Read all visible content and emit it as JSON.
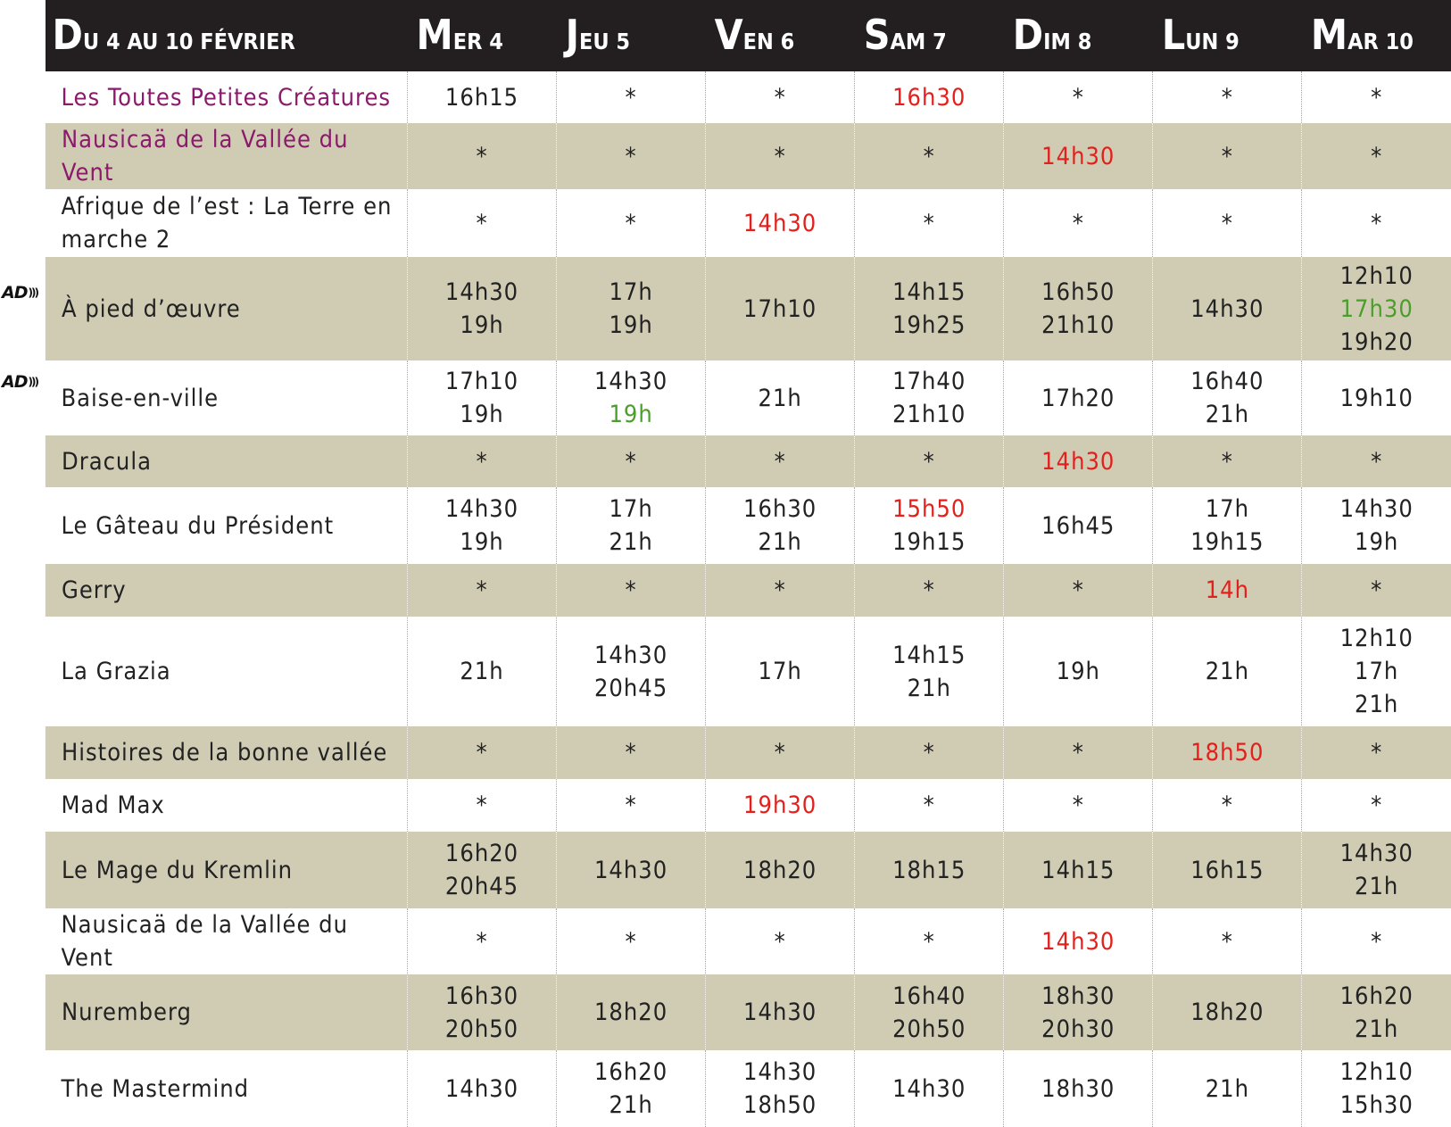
{
  "header": {
    "title": "DU 4 AU 10 FÉVRIER",
    "days": [
      "MER 4",
      "JEU 5",
      "VEN 6",
      "SAM 7",
      "DIM 8",
      "LUN 9",
      "MAR 10"
    ]
  },
  "rows": [
    {
      "title": "Les Toutes Petites Créatures",
      "title_color": "#8b1a6b",
      "cells": [
        [
          "16h15"
        ],
        [
          "*"
        ],
        [
          "*"
        ],
        [
          {
            "text": "16h30",
            "color": "#e3201b"
          }
        ],
        [
          "*"
        ],
        [
          "*"
        ],
        [
          "*"
        ]
      ]
    },
    {
      "title": "Nausicaä de la Vallée du Vent",
      "title_color": "#8b1a6b",
      "cells": [
        [
          "*"
        ],
        [
          "*"
        ],
        [
          "*"
        ],
        [
          "*"
        ],
        [
          {
            "text": "14h30",
            "color": "#e3201b"
          }
        ],
        [
          "*"
        ],
        [
          "*"
        ]
      ]
    },
    {
      "title": "Afrique de l’est : La Terre en marche 2",
      "cells": [
        [
          "*"
        ],
        [
          "*"
        ],
        [
          {
            "text": "14h30",
            "color": "#e3201b"
          }
        ],
        [
          "*"
        ],
        [
          "*"
        ],
        [
          "*"
        ],
        [
          "*"
        ]
      ]
    },
    {
      "title": "À pied d’œuvre",
      "badge": "AD",
      "cells": [
        [
          "14h30",
          "19h"
        ],
        [
          "17h",
          "19h"
        ],
        [
          "17h10"
        ],
        [
          "14h15",
          "19h25"
        ],
        [
          "16h50",
          "21h10"
        ],
        [
          "14h30"
        ],
        [
          "12h10",
          {
            "text": "17h30",
            "color": "#4a9e2a"
          },
          "19h20"
        ]
      ]
    },
    {
      "title": "Baise-en-ville",
      "badge": "AD",
      "cells": [
        [
          "17h10",
          "19h"
        ],
        [
          "14h30",
          {
            "text": "19h",
            "color": "#4a9e2a"
          }
        ],
        [
          "21h"
        ],
        [
          "17h40",
          "21h10"
        ],
        [
          "17h20"
        ],
        [
          "16h40",
          "21h"
        ],
        [
          "19h10"
        ]
      ]
    },
    {
      "title": "Dracula",
      "cells": [
        [
          "*"
        ],
        [
          "*"
        ],
        [
          "*"
        ],
        [
          "*"
        ],
        [
          {
            "text": "14h30",
            "color": "#e3201b"
          }
        ],
        [
          "*"
        ],
        [
          "*"
        ]
      ]
    },
    {
      "title": "Le Gâteau du Président",
      "cells": [
        [
          "14h30",
          "19h"
        ],
        [
          "17h",
          "21h"
        ],
        [
          "16h30",
          "21h"
        ],
        [
          {
            "text": "15h50",
            "color": "#e3201b"
          },
          "19h15"
        ],
        [
          "16h45"
        ],
        [
          "17h",
          "19h15"
        ],
        [
          "14h30",
          "19h"
        ]
      ]
    },
    {
      "title": "Gerry",
      "cells": [
        [
          "*"
        ],
        [
          "*"
        ],
        [
          "*"
        ],
        [
          "*"
        ],
        [
          "*"
        ],
        [
          {
            "text": "14h",
            "color": "#e3201b"
          }
        ],
        [
          "*"
        ]
      ]
    },
    {
      "title": "La Grazia",
      "cells": [
        [
          "21h"
        ],
        [
          "14h30",
          "20h45"
        ],
        [
          "17h"
        ],
        [
          "14h15",
          "21h"
        ],
        [
          "19h"
        ],
        [
          "21h"
        ],
        [
          "12h10",
          "17h",
          "21h"
        ]
      ]
    },
    {
      "title": "Histoires de la bonne vallée",
      "cells": [
        [
          "*"
        ],
        [
          "*"
        ],
        [
          "*"
        ],
        [
          "*"
        ],
        [
          "*"
        ],
        [
          {
            "text": "18h50",
            "color": "#e3201b"
          }
        ],
        [
          "*"
        ]
      ]
    },
    {
      "title": "Mad Max",
      "cells": [
        [
          "*"
        ],
        [
          "*"
        ],
        [
          {
            "text": "19h30",
            "color": "#e3201b"
          }
        ],
        [
          "*"
        ],
        [
          "*"
        ],
        [
          "*"
        ],
        [
          "*"
        ]
      ]
    },
    {
      "title": "Le Mage du Kremlin",
      "cells": [
        [
          "16h20",
          "20h45"
        ],
        [
          "14h30"
        ],
        [
          "18h20"
        ],
        [
          "18h15"
        ],
        [
          "14h15"
        ],
        [
          "16h15"
        ],
        [
          "14h30",
          "21h"
        ]
      ]
    },
    {
      "title": "Nausicaä de la Vallée du Vent",
      "cells": [
        [
          "*"
        ],
        [
          "*"
        ],
        [
          "*"
        ],
        [
          "*"
        ],
        [
          {
            "text": "14h30",
            "color": "#e3201b"
          }
        ],
        [
          "*"
        ],
        [
          "*"
        ]
      ]
    },
    {
      "title": "Nuremberg",
      "cells": [
        [
          "16h30",
          "20h50"
        ],
        [
          "18h20"
        ],
        [
          "14h30"
        ],
        [
          "16h40",
          "20h50"
        ],
        [
          "18h30",
          "20h30"
        ],
        [
          "18h20"
        ],
        [
          "16h20",
          "21h"
        ]
      ]
    },
    {
      "title": "The Mastermind",
      "cells": [
        [
          "14h30"
        ],
        [
          "16h20",
          "21h"
        ],
        [
          "14h30",
          "18h50"
        ],
        [
          "14h30"
        ],
        [
          "18h30"
        ],
        [
          "21h"
        ],
        [
          "12h10",
          "15h30"
        ]
      ]
    }
  ]
}
